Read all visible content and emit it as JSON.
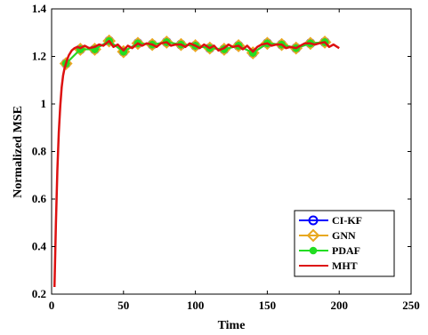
{
  "chart_data": {
    "type": "line",
    "title": "",
    "xlabel": "Time",
    "ylabel": "Normalized MSE",
    "xlim": [
      0,
      250
    ],
    "ylim": [
      0.2,
      1.4
    ],
    "xticks": [
      0,
      50,
      100,
      150,
      200,
      250
    ],
    "yticks": [
      0.2,
      0.4,
      0.6,
      0.8,
      1,
      1.2,
      1.4
    ],
    "x_tick_labels": [
      "0",
      "50",
      "100",
      "150",
      "200",
      "250"
    ],
    "y_tick_labels": [
      "0.2",
      "0.4",
      "0.6",
      "0.8",
      "1",
      "1.2",
      "1.4"
    ],
    "grid": false,
    "legend_position": "bottom-right",
    "series": [
      {
        "name": "CI-KF",
        "color": "#0000ff",
        "marker": "circle",
        "x": [
          10,
          20,
          30,
          40,
          50,
          60,
          70,
          80,
          90,
          100,
          110,
          120,
          130,
          140,
          150,
          160,
          170,
          180,
          190
        ],
        "y": [
          1.17,
          1.23,
          1.23,
          1.265,
          1.22,
          1.255,
          1.25,
          1.26,
          1.25,
          1.245,
          1.235,
          1.23,
          1.245,
          1.215,
          1.255,
          1.25,
          1.235,
          1.255,
          1.26
        ]
      },
      {
        "name": "GNN",
        "color": "#e8a820",
        "marker": "diamond",
        "x": [
          10,
          20,
          30,
          40,
          50,
          60,
          70,
          80,
          90,
          100,
          110,
          120,
          130,
          140,
          150,
          160,
          170,
          180,
          190
        ],
        "y": [
          1.17,
          1.23,
          1.23,
          1.265,
          1.22,
          1.255,
          1.25,
          1.26,
          1.25,
          1.245,
          1.235,
          1.23,
          1.245,
          1.215,
          1.255,
          1.25,
          1.235,
          1.255,
          1.26
        ]
      },
      {
        "name": "PDAF",
        "color": "#22dd22",
        "marker": "filled-circle",
        "x": [
          10,
          20,
          30,
          40,
          50,
          60,
          70,
          80,
          90,
          100,
          110,
          120,
          130,
          140,
          150,
          160,
          170,
          180,
          190
        ],
        "y": [
          1.17,
          1.23,
          1.23,
          1.265,
          1.22,
          1.255,
          1.25,
          1.26,
          1.25,
          1.245,
          1.235,
          1.23,
          1.245,
          1.215,
          1.255,
          1.25,
          1.235,
          1.255,
          1.26
        ]
      },
      {
        "name": "MHT",
        "color": "#dd1111",
        "marker": "none",
        "x": [
          2,
          3,
          4,
          5,
          6,
          7,
          8,
          9,
          10,
          11,
          12,
          13,
          14,
          15,
          16,
          18,
          20,
          23,
          26,
          30,
          33,
          36,
          40,
          43,
          46,
          50,
          53,
          56,
          60,
          63,
          66,
          70,
          73,
          76,
          80,
          83,
          86,
          90,
          93,
          96,
          100,
          103,
          106,
          110,
          113,
          116,
          120,
          123,
          126,
          130,
          133,
          136,
          140,
          143,
          146,
          150,
          153,
          156,
          160,
          163,
          166,
          170,
          173,
          176,
          180,
          183,
          186,
          190,
          193,
          196,
          200
        ],
        "y": [
          0.23,
          0.5,
          0.72,
          0.88,
          0.99,
          1.07,
          1.12,
          1.15,
          1.17,
          1.19,
          1.205,
          1.215,
          1.225,
          1.23,
          1.235,
          1.24,
          1.235,
          1.245,
          1.235,
          1.24,
          1.25,
          1.245,
          1.265,
          1.24,
          1.25,
          1.225,
          1.245,
          1.235,
          1.255,
          1.245,
          1.255,
          1.25,
          1.24,
          1.255,
          1.26,
          1.245,
          1.25,
          1.25,
          1.24,
          1.255,
          1.245,
          1.235,
          1.25,
          1.235,
          1.245,
          1.225,
          1.235,
          1.25,
          1.24,
          1.245,
          1.23,
          1.245,
          1.22,
          1.24,
          1.25,
          1.255,
          1.245,
          1.25,
          1.25,
          1.235,
          1.24,
          1.235,
          1.245,
          1.255,
          1.255,
          1.25,
          1.255,
          1.26,
          1.24,
          1.25,
          1.235
        ]
      }
    ]
  }
}
